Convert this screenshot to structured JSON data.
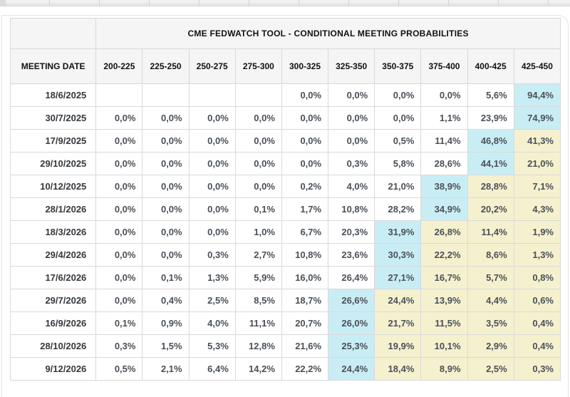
{
  "table": {
    "title": "CME FEDWATCH TOOL - CONDITIONAL MEETING PROBABILITIES",
    "date_column_header": "MEETING DATE",
    "rate_range_headers": [
      "200-225",
      "225-250",
      "250-275",
      "275-300",
      "300-325",
      "325-350",
      "350-375",
      "375-400",
      "400-425",
      "425-450"
    ],
    "rows": [
      {
        "date": "18/6/2025",
        "cells": [
          {
            "v": "",
            "h": ""
          },
          {
            "v": "",
            "h": ""
          },
          {
            "v": "",
            "h": ""
          },
          {
            "v": "",
            "h": ""
          },
          {
            "v": "0,0%",
            "h": ""
          },
          {
            "v": "0,0%",
            "h": ""
          },
          {
            "v": "0,0%",
            "h": ""
          },
          {
            "v": "0,0%",
            "h": ""
          },
          {
            "v": "5,6%",
            "h": ""
          },
          {
            "v": "94,4%",
            "h": "c"
          }
        ]
      },
      {
        "date": "30/7/2025",
        "cells": [
          {
            "v": "0,0%",
            "h": ""
          },
          {
            "v": "0,0%",
            "h": ""
          },
          {
            "v": "0,0%",
            "h": ""
          },
          {
            "v": "0,0%",
            "h": ""
          },
          {
            "v": "0,0%",
            "h": ""
          },
          {
            "v": "0,0%",
            "h": ""
          },
          {
            "v": "0,0%",
            "h": ""
          },
          {
            "v": "1,1%",
            "h": ""
          },
          {
            "v": "23,9%",
            "h": ""
          },
          {
            "v": "74,9%",
            "h": "c"
          }
        ]
      },
      {
        "date": "17/9/2025",
        "cells": [
          {
            "v": "0,0%",
            "h": ""
          },
          {
            "v": "0,0%",
            "h": ""
          },
          {
            "v": "0,0%",
            "h": ""
          },
          {
            "v": "0,0%",
            "h": ""
          },
          {
            "v": "0,0%",
            "h": ""
          },
          {
            "v": "0,0%",
            "h": ""
          },
          {
            "v": "0,5%",
            "h": ""
          },
          {
            "v": "11,4%",
            "h": ""
          },
          {
            "v": "46,8%",
            "h": "c"
          },
          {
            "v": "41,3%",
            "h": "y"
          }
        ]
      },
      {
        "date": "29/10/2025",
        "cells": [
          {
            "v": "0,0%",
            "h": ""
          },
          {
            "v": "0,0%",
            "h": ""
          },
          {
            "v": "0,0%",
            "h": ""
          },
          {
            "v": "0,0%",
            "h": ""
          },
          {
            "v": "0,0%",
            "h": ""
          },
          {
            "v": "0,3%",
            "h": ""
          },
          {
            "v": "5,8%",
            "h": ""
          },
          {
            "v": "28,6%",
            "h": ""
          },
          {
            "v": "44,1%",
            "h": "c"
          },
          {
            "v": "21,0%",
            "h": "y"
          }
        ]
      },
      {
        "date": "10/12/2025",
        "cells": [
          {
            "v": "0,0%",
            "h": ""
          },
          {
            "v": "0,0%",
            "h": ""
          },
          {
            "v": "0,0%",
            "h": ""
          },
          {
            "v": "0,0%",
            "h": ""
          },
          {
            "v": "0,2%",
            "h": ""
          },
          {
            "v": "4,0%",
            "h": ""
          },
          {
            "v": "21,0%",
            "h": ""
          },
          {
            "v": "38,9%",
            "h": "c"
          },
          {
            "v": "28,8%",
            "h": "y"
          },
          {
            "v": "7,1%",
            "h": "y"
          }
        ]
      },
      {
        "date": "28/1/2026",
        "cells": [
          {
            "v": "0,0%",
            "h": ""
          },
          {
            "v": "0,0%",
            "h": ""
          },
          {
            "v": "0,0%",
            "h": ""
          },
          {
            "v": "0,1%",
            "h": ""
          },
          {
            "v": "1,7%",
            "h": ""
          },
          {
            "v": "10,8%",
            "h": ""
          },
          {
            "v": "28,2%",
            "h": ""
          },
          {
            "v": "34,9%",
            "h": "c"
          },
          {
            "v": "20,2%",
            "h": "y"
          },
          {
            "v": "4,3%",
            "h": "y"
          }
        ]
      },
      {
        "date": "18/3/2026",
        "cells": [
          {
            "v": "0,0%",
            "h": ""
          },
          {
            "v": "0,0%",
            "h": ""
          },
          {
            "v": "0,0%",
            "h": ""
          },
          {
            "v": "1,0%",
            "h": ""
          },
          {
            "v": "6,7%",
            "h": ""
          },
          {
            "v": "20,3%",
            "h": ""
          },
          {
            "v": "31,9%",
            "h": "c"
          },
          {
            "v": "26,8%",
            "h": "y"
          },
          {
            "v": "11,4%",
            "h": "y"
          },
          {
            "v": "1,9%",
            "h": "y"
          }
        ]
      },
      {
        "date": "29/4/2026",
        "cells": [
          {
            "v": "0,0%",
            "h": ""
          },
          {
            "v": "0,0%",
            "h": ""
          },
          {
            "v": "0,3%",
            "h": ""
          },
          {
            "v": "2,7%",
            "h": ""
          },
          {
            "v": "10,8%",
            "h": ""
          },
          {
            "v": "23,6%",
            "h": ""
          },
          {
            "v": "30,3%",
            "h": "c"
          },
          {
            "v": "22,2%",
            "h": "y"
          },
          {
            "v": "8,6%",
            "h": "y"
          },
          {
            "v": "1,3%",
            "h": "y"
          }
        ]
      },
      {
        "date": "17/6/2026",
        "cells": [
          {
            "v": "0,0%",
            "h": ""
          },
          {
            "v": "0,1%",
            "h": ""
          },
          {
            "v": "1,3%",
            "h": ""
          },
          {
            "v": "5,9%",
            "h": ""
          },
          {
            "v": "16,0%",
            "h": ""
          },
          {
            "v": "26,4%",
            "h": ""
          },
          {
            "v": "27,1%",
            "h": "c"
          },
          {
            "v": "16,7%",
            "h": "y"
          },
          {
            "v": "5,7%",
            "h": "y"
          },
          {
            "v": "0,8%",
            "h": "y"
          }
        ]
      },
      {
        "date": "29/7/2026",
        "cells": [
          {
            "v": "0,0%",
            "h": ""
          },
          {
            "v": "0,4%",
            "h": ""
          },
          {
            "v": "2,5%",
            "h": ""
          },
          {
            "v": "8,5%",
            "h": ""
          },
          {
            "v": "18,7%",
            "h": ""
          },
          {
            "v": "26,6%",
            "h": "c"
          },
          {
            "v": "24,4%",
            "h": "y"
          },
          {
            "v": "13,9%",
            "h": "y"
          },
          {
            "v": "4,4%",
            "h": "y"
          },
          {
            "v": "0,6%",
            "h": "y"
          }
        ]
      },
      {
        "date": "16/9/2026",
        "cells": [
          {
            "v": "0,1%",
            "h": ""
          },
          {
            "v": "0,9%",
            "h": ""
          },
          {
            "v": "4,0%",
            "h": ""
          },
          {
            "v": "11,1%",
            "h": ""
          },
          {
            "v": "20,7%",
            "h": ""
          },
          {
            "v": "26,0%",
            "h": "c"
          },
          {
            "v": "21,7%",
            "h": "y"
          },
          {
            "v": "11,5%",
            "h": "y"
          },
          {
            "v": "3,5%",
            "h": "y"
          },
          {
            "v": "0,4%",
            "h": "y"
          }
        ]
      },
      {
        "date": "28/10/2026",
        "cells": [
          {
            "v": "0,3%",
            "h": ""
          },
          {
            "v": "1,5%",
            "h": ""
          },
          {
            "v": "5,3%",
            "h": ""
          },
          {
            "v": "12,8%",
            "h": ""
          },
          {
            "v": "21,6%",
            "h": ""
          },
          {
            "v": "25,3%",
            "h": "c"
          },
          {
            "v": "19,9%",
            "h": "y"
          },
          {
            "v": "10,1%",
            "h": "y"
          },
          {
            "v": "2,9%",
            "h": "y"
          },
          {
            "v": "0,4%",
            "h": "y"
          }
        ]
      },
      {
        "date": "9/12/2026",
        "cells": [
          {
            "v": "0,5%",
            "h": ""
          },
          {
            "v": "2,1%",
            "h": ""
          },
          {
            "v": "6,4%",
            "h": ""
          },
          {
            "v": "14,2%",
            "h": ""
          },
          {
            "v": "22,2%",
            "h": ""
          },
          {
            "v": "24,4%",
            "h": "c"
          },
          {
            "v": "18,4%",
            "h": "y"
          },
          {
            "v": "8,9%",
            "h": "y"
          },
          {
            "v": "2,5%",
            "h": "y"
          },
          {
            "v": "0,3%",
            "h": "y"
          }
        ]
      }
    ]
  },
  "colors": {
    "highlight_modal_cyan": "#c9edf5",
    "highlight_tail_yellow": "#f5f1cf",
    "header_background": "#f5f5f5",
    "cell_border": "#d9d9d9",
    "value_text": "#4a5057"
  }
}
